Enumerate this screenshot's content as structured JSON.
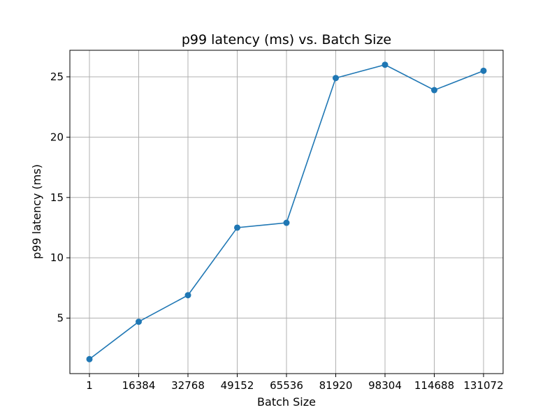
{
  "chart_data": {
    "type": "line",
    "title": "p99 latency (ms) vs. Batch Size",
    "xlabel": "Batch Size",
    "ylabel": "p99 latency (ms)",
    "categories": [
      "1",
      "16384",
      "32768",
      "49152",
      "65536",
      "81920",
      "98304",
      "114688",
      "131072"
    ],
    "series": [
      {
        "values": [
          1.6,
          4.7,
          6.9,
          12.5,
          12.9,
          24.9,
          26.0,
          23.9,
          25.5
        ]
      }
    ],
    "y_ticks": [
      5,
      10,
      15,
      20,
      25
    ],
    "ylim": [
      0.4,
      27.2
    ],
    "grid": true,
    "legend": false,
    "colors": {
      "line": "#1f77b4",
      "grid": "#b0b0b0"
    }
  }
}
